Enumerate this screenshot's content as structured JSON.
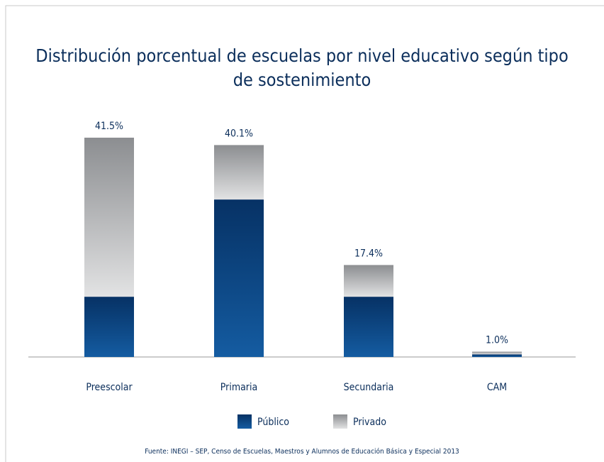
{
  "chart_data": {
    "type": "stacked-bar",
    "title": "Distribución porcentual de escuelas por nivel educativo según tipo de sostenimiento",
    "categories": [
      "Preescolar",
      "Primaria",
      "Secundaria",
      "CAM"
    ],
    "series": [
      {
        "name": "Público",
        "color": "#0f4f92",
        "values": [
          11.4,
          29.8,
          11.4,
          0.5
        ]
      },
      {
        "name": "Privado",
        "color": "#8c8e91",
        "values": [
          30.1,
          10.3,
          6.0,
          0.5
        ]
      }
    ],
    "total_labels": [
      "41.5%",
      "40.1%",
      "17.4%",
      "1.0%"
    ],
    "ylim": [
      0,
      45
    ],
    "source": "Fuente: INEGI – SEP, Censo de Escuelas, Maestros y Alumnos de Educación Básica y Especial 2013"
  }
}
